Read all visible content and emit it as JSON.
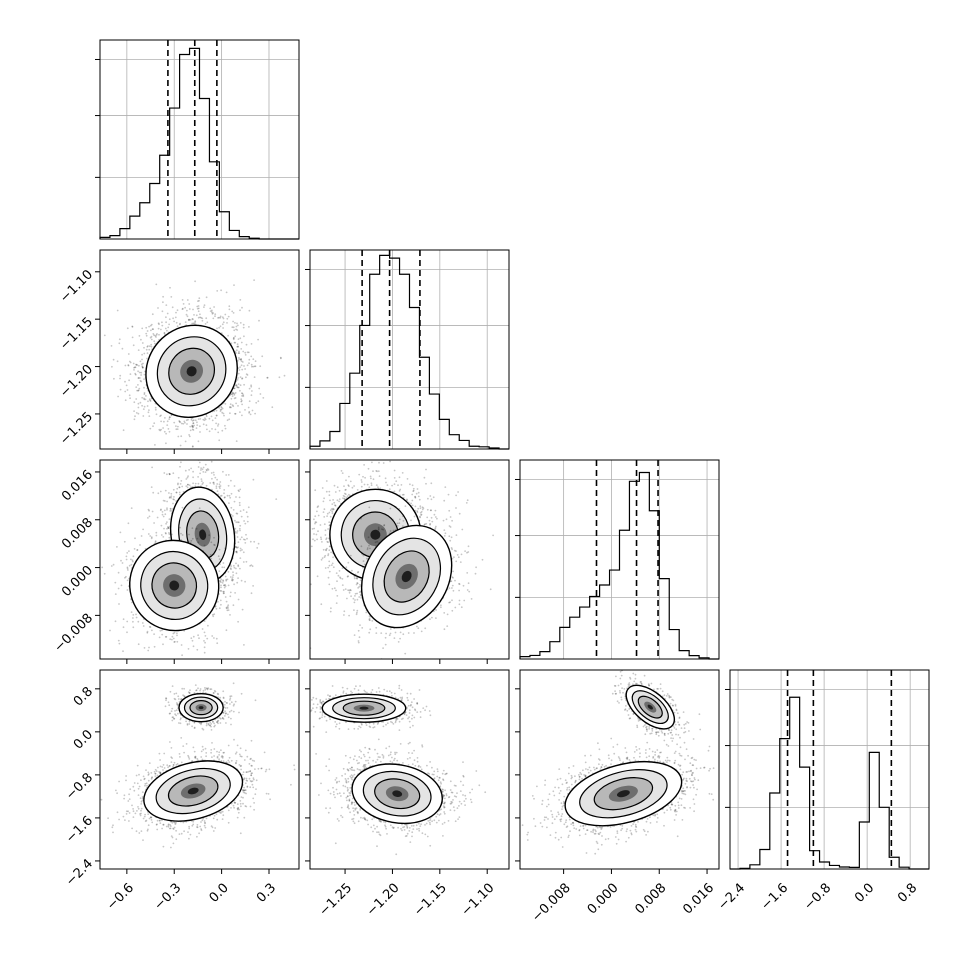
{
  "chart_data": {
    "type": "corner",
    "params": [
      {
        "ticks": [
          -0.6,
          -0.3,
          0.0,
          0.3
        ],
        "tick_labels": [
          "−0.6",
          "−0.3",
          "0.0",
          "0.3"
        ],
        "range": [
          -0.77,
          0.49
        ]
      },
      {
        "ticks": [
          -1.25,
          -1.2,
          -1.15,
          -1.1
        ],
        "tick_labels": [
          "−1.25",
          "−1.20",
          "−1.15",
          "−1.10"
        ],
        "range": [
          -1.287,
          -1.077
        ]
      },
      {
        "ticks": [
          -0.008,
          0.0,
          0.008,
          0.016
        ],
        "tick_labels": [
          "−0.008",
          "0.000",
          "0.008",
          "0.016"
        ],
        "range": [
          -0.0153,
          0.018
        ]
      },
      {
        "ticks": [
          -2.4,
          -1.6,
          -0.8,
          0.0,
          0.8
        ],
        "tick_labels": [
          "−2.4",
          "−1.6",
          "−0.8",
          "0.0",
          "0.8"
        ],
        "range": [
          -2.55,
          1.15
        ]
      }
    ],
    "diagonal": [
      {
        "quantiles": [
          -0.34,
          -0.17,
          -0.03
        ],
        "grid_fracs": [
          0.333,
          0.667,
          0.97
        ],
        "hist": [
          0.008,
          0.017,
          0.052,
          0.115,
          0.182,
          0.279,
          0.421,
          0.658,
          0.927,
          0.958,
          0.706,
          0.388,
          0.137,
          0.043,
          0.012,
          0.004,
          0.0,
          0.0,
          0.0,
          0.0
        ]
      },
      {
        "quantiles": [
          -1.232,
          -1.203,
          -1.171
        ],
        "grid_fracs": [
          0.333,
          0.667,
          0.97
        ],
        "hist": [
          0.014,
          0.041,
          0.088,
          0.229,
          0.381,
          0.621,
          0.878,
          0.973,
          0.959,
          0.878,
          0.711,
          0.461,
          0.276,
          0.149,
          0.072,
          0.043,
          0.014,
          0.011,
          0.005,
          0.0
        ]
      },
      {
        "quantiles": [
          -0.0025,
          0.0042,
          0.0078
        ],
        "grid_fracs": [
          0.333,
          0.667,
          0.97
        ],
        "hist": [
          0.012,
          0.018,
          0.037,
          0.087,
          0.159,
          0.21,
          0.261,
          0.314,
          0.372,
          0.447,
          0.647,
          0.893,
          0.937,
          0.745,
          0.404,
          0.148,
          0.042,
          0.017,
          0.006,
          0.0
        ]
      },
      {
        "quantiles": [
          -1.48,
          -1.0,
          0.45
        ],
        "grid_fracs": [
          0.333,
          0.667,
          0.97
        ],
        "hist": [
          0.0,
          0.003,
          0.021,
          0.098,
          0.382,
          0.655,
          0.863,
          0.512,
          0.092,
          0.035,
          0.018,
          0.01,
          0.008,
          0.236,
          0.586,
          0.31,
          0.059,
          0.009,
          0.0,
          0.0
        ]
      }
    ],
    "pairs": [
      {
        "row": 1,
        "col": 0,
        "blobs": [
          {
            "cx": -0.19,
            "cy": -1.205,
            "sx": 0.14,
            "sy": 0.025,
            "rot": -42,
            "w": 1
          }
        ]
      },
      {
        "row": 2,
        "col": 0,
        "blobs": [
          {
            "cx": -0.12,
            "cy": 0.0055,
            "sx": 0.1,
            "sy": 0.004,
            "rot": 8,
            "w": 0.7
          },
          {
            "cx": -0.3,
            "cy": -0.003,
            "sx": 0.14,
            "sy": 0.0038,
            "rot": 30,
            "w": 0.35
          }
        ]
      },
      {
        "row": 2,
        "col": 1,
        "blobs": [
          {
            "cx": -1.218,
            "cy": 0.0055,
            "sx": 0.024,
            "sy": 0.0038,
            "rot": -10,
            "w": 0.7
          },
          {
            "cx": -1.185,
            "cy": -0.0015,
            "sx": 0.022,
            "sy": 0.0045,
            "rot": -30,
            "w": 0.4
          }
        ]
      },
      {
        "row": 3,
        "col": 0,
        "blobs": [
          {
            "cx": -0.13,
            "cy": 0.45,
            "sx": 0.07,
            "sy": 0.13,
            "rot": 0,
            "w": 0.3
          },
          {
            "cx": -0.18,
            "cy": -1.1,
            "sx": 0.16,
            "sy": 0.26,
            "rot": 15,
            "w": 0.7
          }
        ]
      },
      {
        "row": 3,
        "col": 1,
        "blobs": [
          {
            "cx": -1.23,
            "cy": 0.44,
            "sx": 0.022,
            "sy": 0.13,
            "rot": 0,
            "w": 0.3
          },
          {
            "cx": -1.195,
            "cy": -1.15,
            "sx": 0.024,
            "sy": 0.27,
            "rot": -10,
            "w": 0.7
          }
        ]
      },
      {
        "row": 3,
        "col": 2,
        "blobs": [
          {
            "cx": 0.0065,
            "cy": 0.46,
            "sx": 0.0024,
            "sy": 0.14,
            "rot": -40,
            "w": 0.3
          },
          {
            "cx": 0.002,
            "cy": -1.15,
            "sx": 0.005,
            "sy": 0.27,
            "rot": 15,
            "w": 0.7
          }
        ]
      }
    ]
  }
}
